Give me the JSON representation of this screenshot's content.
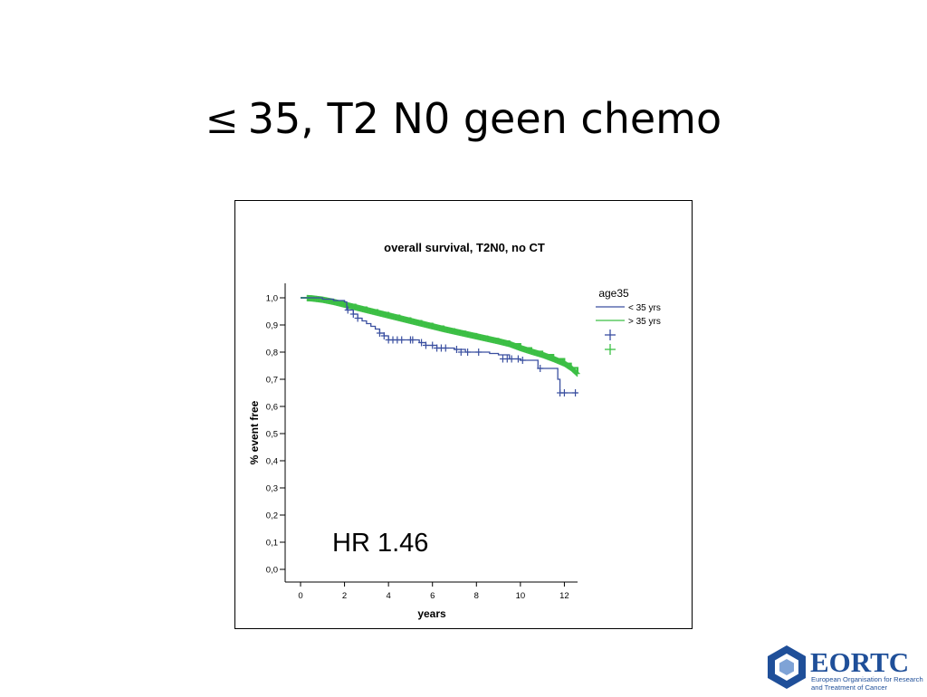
{
  "slide": {
    "title_symbol": "≤",
    "title_text": "35, T2 N0 geen chemo"
  },
  "annotation": {
    "hr_text": "HR 1.46"
  },
  "logo": {
    "name": "EORTC",
    "line1": "European Organisation for Research",
    "line2": "and Treatment of Cancer",
    "color": "#1f4f99"
  },
  "chart_data": {
    "type": "line",
    "step": true,
    "title": "overall survival, T2N0, no CT",
    "xlabel": "years",
    "ylabel": "% event free",
    "xlim": [
      0,
      12.6
    ],
    "ylim": [
      0,
      1.0
    ],
    "x_ticks": [
      0,
      2,
      4,
      6,
      8,
      10,
      12
    ],
    "x_tick_labels": [
      "0",
      "2",
      "4",
      "6",
      "8",
      "10",
      "12"
    ],
    "y_ticks": [
      0,
      0.1,
      0.2,
      0.3,
      0.4,
      0.5,
      0.6,
      0.7,
      0.8,
      0.9,
      1.0
    ],
    "y_tick_labels": [
      "0,0",
      "0,1",
      "0,2",
      "0,3",
      "0,4",
      "0,5",
      "0,6",
      "0,7",
      "0,8",
      "0,9",
      "1,0"
    ],
    "grid": false,
    "legend": {
      "title": "age35",
      "position": "right",
      "entries": [
        "< 35 yrs",
        "> 35 yrs"
      ]
    },
    "series": [
      {
        "name": "< 35 yrs",
        "color": "#3a4fa0",
        "x": [
          0,
          0.5,
          1.0,
          1.5,
          2.0,
          2.1,
          2.4,
          2.6,
          2.8,
          3.0,
          3.2,
          3.4,
          3.6,
          3.8,
          4.0,
          5.0,
          5.4,
          5.7,
          6.2,
          7.0,
          7.5,
          8.0,
          8.6,
          9.0,
          9.5,
          10.0,
          10.5,
          10.8,
          11.4,
          11.7,
          11.8,
          12.6
        ],
        "y": [
          1.0,
          1.0,
          0.995,
          0.99,
          0.985,
          0.955,
          0.94,
          0.925,
          0.915,
          0.905,
          0.895,
          0.885,
          0.87,
          0.86,
          0.845,
          0.845,
          0.835,
          0.825,
          0.815,
          0.81,
          0.8,
          0.8,
          0.795,
          0.79,
          0.775,
          0.77,
          0.77,
          0.74,
          0.74,
          0.7,
          0.65,
          0.65
        ],
        "censor_x": [
          2.15,
          2.4,
          2.6,
          3.6,
          3.8,
          4.0,
          4.2,
          4.4,
          4.6,
          5.0,
          5.1,
          5.5,
          5.7,
          6.0,
          6.2,
          6.4,
          6.6,
          7.1,
          7.3,
          7.6,
          8.1,
          9.2,
          9.4,
          9.6,
          9.9,
          10.1,
          10.9,
          11.8,
          12.0,
          12.5
        ],
        "censor_y": [
          0.955,
          0.94,
          0.925,
          0.87,
          0.86,
          0.845,
          0.845,
          0.845,
          0.845,
          0.845,
          0.845,
          0.835,
          0.825,
          0.825,
          0.815,
          0.815,
          0.815,
          0.81,
          0.8,
          0.8,
          0.8,
          0.775,
          0.775,
          0.775,
          0.775,
          0.77,
          0.74,
          0.65,
          0.65,
          0.65
        ]
      },
      {
        "name": "> 35 yrs",
        "color": "#3cbf45",
        "x": [
          0,
          0.5,
          1.0,
          1.5,
          2.0,
          2.5,
          3.0,
          3.5,
          4.0,
          4.5,
          5.0,
          5.5,
          6.0,
          6.5,
          7.0,
          7.5,
          8.0,
          8.5,
          9.0,
          9.5,
          10.0,
          10.5,
          11.0,
          11.5,
          12.0,
          12.3,
          12.6
        ],
        "y": [
          1.0,
          0.998,
          0.993,
          0.985,
          0.975,
          0.965,
          0.955,
          0.945,
          0.935,
          0.925,
          0.915,
          0.905,
          0.895,
          0.885,
          0.876,
          0.867,
          0.858,
          0.849,
          0.84,
          0.83,
          0.815,
          0.802,
          0.79,
          0.775,
          0.758,
          0.742,
          0.72
        ],
        "censor_density": "dense"
      }
    ]
  }
}
